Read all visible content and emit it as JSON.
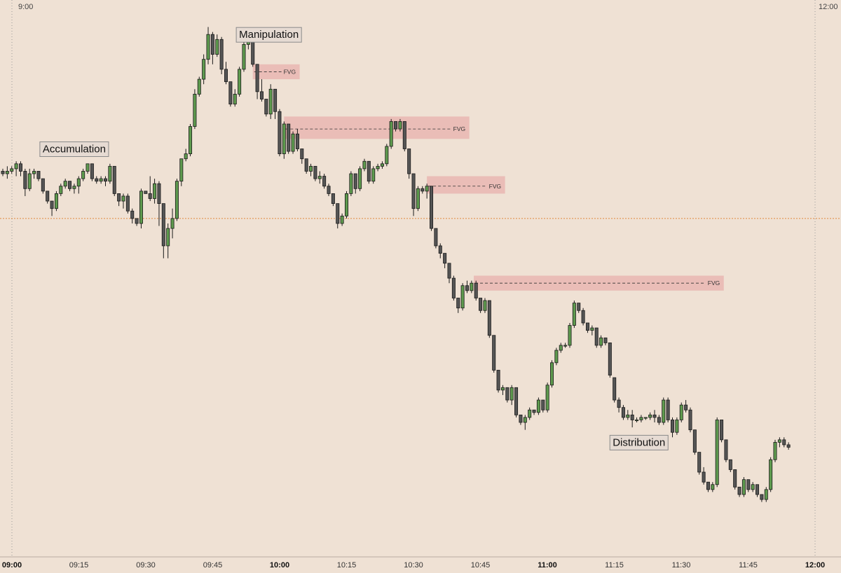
{
  "chart_data": {
    "type": "candlestick",
    "title": "",
    "top_left_label": "9:00",
    "top_right_label": "12:00",
    "x_ticks": [
      {
        "label": "09:00",
        "bold": true,
        "minute": 0
      },
      {
        "label": "09:15",
        "bold": false,
        "minute": 15
      },
      {
        "label": "09:30",
        "bold": false,
        "minute": 30
      },
      {
        "label": "09:45",
        "bold": false,
        "minute": 45
      },
      {
        "label": "10:00",
        "bold": true,
        "minute": 60
      },
      {
        "label": "10:15",
        "bold": false,
        "minute": 75
      },
      {
        "label": "10:30",
        "bold": false,
        "minute": 90
      },
      {
        "label": "10:45",
        "bold": false,
        "minute": 105
      },
      {
        "label": "11:00",
        "bold": true,
        "minute": 120
      },
      {
        "label": "11:15",
        "bold": false,
        "minute": 135
      },
      {
        "label": "11:30",
        "bold": false,
        "minute": 150
      },
      {
        "label": "11:45",
        "bold": false,
        "minute": 165
      },
      {
        "label": "12:00",
        "bold": true,
        "minute": 180
      }
    ],
    "x_range_minutes": [
      0,
      186
    ],
    "y_range": [
      0,
      100
    ],
    "reference_level": 61,
    "phase_labels": [
      {
        "text": "Accumulation",
        "minute": 16,
        "value": 75
      },
      {
        "text": "Manipulation",
        "minute": 59.6,
        "value": 98
      },
      {
        "text": "Distribution",
        "minute": 142.5,
        "value": 16
      }
    ],
    "fvg_zones": [
      {
        "label": "FVG",
        "start": 56,
        "end": 66.5,
        "low": 89,
        "high": 92,
        "line": 90.5
      },
      {
        "label": "FVG",
        "start": 63,
        "end": 104.5,
        "low": 77,
        "high": 81.5,
        "line": 79
      },
      {
        "label": "FVG",
        "start": 95,
        "end": 112.5,
        "low": 66,
        "high": 69.5,
        "line": 67.5
      },
      {
        "label": "FVG",
        "start": 105.5,
        "end": 161.5,
        "low": 46.5,
        "high": 49.5,
        "line": 48
      }
    ],
    "candles": [
      [
        70.5,
        71,
        69.5,
        70,
        70.5
      ],
      [
        70,
        71.5,
        69,
        70.5,
        71.5
      ],
      [
        70.5,
        71.5,
        70,
        71,
        72.5
      ],
      [
        71,
        72.5,
        69.5,
        72,
        72
      ],
      [
        72,
        72.5,
        69.5,
        70.5,
        71
      ],
      [
        70.5,
        71,
        65.5,
        67,
        62
      ],
      [
        67,
        71,
        66.5,
        70,
        71.5
      ],
      [
        70,
        71,
        69,
        70.5,
        71
      ],
      [
        70.5,
        70.5,
        68.5,
        69,
        71
      ],
      [
        69,
        69,
        66,
        66.5,
        67
      ],
      [
        66.5,
        66.5,
        64,
        64.5,
        65
      ],
      [
        64.5,
        64.5,
        61.5,
        63,
        65
      ],
      [
        63,
        66.5,
        62.5,
        66,
        66.5
      ],
      [
        66,
        68,
        65.5,
        67.5,
        68
      ],
      [
        67.5,
        69,
        67,
        68.5,
        69
      ],
      [
        68.5,
        68.5,
        66.5,
        67,
        70
      ],
      [
        67,
        68,
        66,
        67.5,
        68.5
      ],
      [
        67.5,
        69.5,
        66,
        69,
        70
      ],
      [
        69,
        71,
        68.5,
        70.5,
        71
      ],
      [
        70.5,
        72,
        70,
        72,
        72.5
      ],
      [
        72,
        72,
        68.5,
        69,
        72
      ],
      [
        69,
        69.5,
        68,
        68.5,
        69.5
      ],
      [
        68.5,
        69.5,
        68,
        69,
        69.5
      ],
      [
        69,
        69.5,
        67.5,
        68.5,
        69
      ],
      [
        68.5,
        72,
        68,
        71.5,
        72
      ],
      [
        71.5,
        71.5,
        65.5,
        66,
        71
      ],
      [
        66,
        66,
        63.5,
        64.5,
        65.5
      ],
      [
        64.5,
        66,
        63,
        65.5,
        66
      ],
      [
        65.5,
        66,
        62,
        62.5,
        64
      ],
      [
        62.5,
        63,
        60,
        61,
        62
      ],
      [
        61,
        61,
        59.5,
        60,
        61
      ],
      [
        60,
        67,
        59,
        66.5,
        72
      ],
      [
        66.5,
        66.5,
        66,
        66,
        67
      ],
      [
        66,
        69.5,
        64.5,
        65,
        69
      ],
      [
        65,
        69,
        64,
        68,
        68
      ],
      [
        68,
        68.5,
        59.5,
        64,
        59
      ],
      [
        64,
        64,
        53,
        55.5,
        59
      ],
      [
        55.5,
        60,
        53,
        59,
        61
      ],
      [
        59,
        63,
        57,
        61,
        63
      ],
      [
        61,
        69,
        60.5,
        68.5,
        69
      ],
      [
        68.5,
        73,
        67.5,
        73,
        73.5
      ],
      [
        73,
        75,
        72.5,
        74,
        74.5
      ],
      [
        74,
        80,
        73.5,
        79.5,
        80
      ],
      [
        79.5,
        87,
        79,
        86,
        87
      ],
      [
        86,
        89.5,
        85.5,
        89,
        89.5
      ],
      [
        89,
        94,
        88,
        93,
        94
      ],
      [
        93,
        99.5,
        92,
        98,
        99
      ],
      [
        98,
        98.5,
        92,
        94,
        94
      ],
      [
        94,
        98,
        93.5,
        97,
        97.5
      ],
      [
        97,
        97.5,
        90,
        91,
        91
      ],
      [
        91,
        92.5,
        88,
        88.5,
        88.5
      ],
      [
        88.5,
        88.5,
        83.5,
        84,
        86
      ],
      [
        84,
        87,
        83.5,
        86,
        86
      ],
      [
        86,
        91.5,
        85.5,
        91,
        91
      ],
      [
        91,
        97,
        90.5,
        96,
        96
      ],
      [
        96,
        98,
        95,
        97.5,
        98
      ],
      [
        97.5,
        97.5,
        91.5,
        92,
        92
      ],
      [
        92,
        92,
        85,
        86.5,
        86
      ],
      [
        86.5,
        89,
        84.5,
        85,
        88
      ],
      [
        85,
        85,
        81.5,
        82,
        84
      ],
      [
        82,
        88,
        81,
        87,
        89
      ],
      [
        87,
        87,
        81,
        82.5,
        80
      ],
      [
        82.5,
        83,
        73.5,
        74,
        74
      ],
      [
        74,
        80.5,
        73,
        80,
        79
      ],
      [
        80,
        80,
        74,
        74.5,
        77
      ],
      [
        74.5,
        78.5,
        74,
        78,
        79
      ],
      [
        78,
        79,
        74.5,
        75,
        80
      ],
      [
        75,
        75,
        72,
        73,
        72.5
      ],
      [
        73,
        73,
        70,
        70.5,
        69.5
      ],
      [
        70.5,
        72,
        69.5,
        71.5,
        72
      ],
      [
        71.5,
        71.5,
        68.5,
        69,
        73
      ],
      [
        69,
        70.5,
        68,
        69.5,
        71
      ],
      [
        69.5,
        70,
        67,
        67.5,
        70
      ],
      [
        67.5,
        68,
        65.5,
        66,
        67.5
      ],
      [
        66,
        66,
        63.5,
        64,
        67
      ],
      [
        64,
        64,
        59,
        60,
        62
      ],
      [
        60,
        62,
        59.5,
        61.5,
        63
      ],
      [
        61.5,
        66.5,
        61,
        66,
        67
      ],
      [
        66,
        70.5,
        65.5,
        70,
        69
      ],
      [
        70,
        70,
        66,
        67,
        67
      ],
      [
        67,
        71.5,
        66.5,
        71,
        73
      ],
      [
        71,
        73,
        70.5,
        72.5,
        72
      ],
      [
        72.5,
        72.5,
        68,
        68.5,
        69
      ],
      [
        68.5,
        71.5,
        68,
        71,
        70.5
      ],
      [
        71,
        72,
        70.5,
        71.5,
        73
      ],
      [
        71.5,
        72.5,
        71,
        72,
        74
      ],
      [
        72,
        76,
        71.5,
        75.5,
        77
      ],
      [
        75.5,
        81,
        75,
        80.5,
        81.5
      ],
      [
        80.5,
        80.5,
        78.5,
        79,
        82
      ],
      [
        79,
        81,
        78.5,
        80.5,
        81.5
      ],
      [
        80.5,
        80.5,
        74.5,
        75,
        75
      ],
      [
        75,
        75,
        69,
        70,
        70
      ],
      [
        70,
        70,
        61.5,
        63,
        61
      ],
      [
        63,
        67.5,
        62.5,
        67,
        67
      ],
      [
        67,
        67.5,
        66,
        66.5,
        68
      ],
      [
        66.5,
        68,
        65,
        67.5,
        69
      ],
      [
        67.5,
        67.5,
        58.5,
        59,
        58
      ],
      [
        59,
        59,
        55,
        55.5,
        55
      ],
      [
        55.5,
        56,
        53,
        54,
        54
      ],
      [
        54,
        54,
        51,
        52,
        52
      ],
      [
        52,
        52,
        48,
        49,
        49
      ],
      [
        49,
        49.5,
        44.5,
        45,
        45
      ],
      [
        45,
        45,
        42,
        43,
        43
      ],
      [
        43,
        48,
        42.5,
        47.5,
        48
      ],
      [
        47.5,
        48.5,
        46,
        46.5,
        48
      ],
      [
        46.5,
        48.5,
        46,
        48,
        49.5
      ],
      [
        48,
        48.5,
        44.5,
        45,
        49
      ],
      [
        45,
        45,
        42,
        42.5,
        43
      ],
      [
        42.5,
        45,
        42,
        44.5,
        45.5
      ],
      [
        44.5,
        44.5,
        37,
        37.5,
        38
      ],
      [
        37.5,
        37.5,
        30,
        30.5,
        32
      ],
      [
        30.5,
        30.5,
        26,
        26.5,
        27
      ],
      [
        26.5,
        27.5,
        25.5,
        27,
        28
      ],
      [
        27,
        27,
        24,
        24.5,
        27
      ],
      [
        24.5,
        27.5,
        23.5,
        27,
        28
      ],
      [
        27,
        27,
        21,
        21.5,
        22
      ],
      [
        21.5,
        21.5,
        19.5,
        20,
        20
      ],
      [
        20,
        21.5,
        18.5,
        21,
        22
      ],
      [
        21,
        23,
        20.5,
        22.5,
        22
      ],
      [
        22.5,
        22.5,
        21.5,
        22,
        24
      ],
      [
        22,
        25,
        21.5,
        24.5,
        25
      ],
      [
        24.5,
        24.5,
        22,
        22.5,
        26
      ],
      [
        22.5,
        28,
        22,
        27.5,
        28
      ],
      [
        27.5,
        32.5,
        27,
        32,
        31
      ],
      [
        32,
        35,
        31.5,
        34.5,
        35
      ],
      [
        34.5,
        36,
        34,
        35.5,
        36.5
      ],
      [
        35.5,
        36,
        35,
        35.5,
        36
      ],
      [
        35.5,
        40,
        35,
        39.5,
        41
      ],
      [
        39.5,
        44.5,
        39,
        44,
        44.5
      ],
      [
        44,
        44,
        42,
        42.5,
        44
      ],
      [
        42.5,
        43,
        39.5,
        40,
        41
      ],
      [
        40,
        40,
        38,
        38.5,
        38.5
      ],
      [
        38.5,
        39.5,
        37.5,
        39,
        39
      ],
      [
        39,
        39,
        35,
        35.5,
        35.5
      ],
      [
        35.5,
        37.5,
        35,
        37,
        36
      ],
      [
        37,
        37,
        35.5,
        36,
        38
      ],
      [
        36,
        36,
        29,
        29.5,
        29
      ],
      [
        29,
        29,
        24,
        24.5,
        24
      ],
      [
        24.5,
        25,
        22,
        23,
        22
      ],
      [
        23,
        23.5,
        20.5,
        21,
        21
      ],
      [
        21,
        22.5,
        20.5,
        21.5,
        21.5
      ],
      [
        21.5,
        22.5,
        19,
        20.5,
        20
      ],
      [
        20.5,
        21,
        20,
        20.5,
        21.5
      ],
      [
        20.5,
        21.5,
        20,
        21,
        22
      ],
      [
        21,
        21,
        20.5,
        21,
        22
      ],
      [
        21,
        22,
        20.5,
        21.5,
        22.5
      ],
      [
        21.5,
        22.5,
        20,
        21,
        21.5
      ],
      [
        21,
        21.5,
        19.5,
        20,
        20
      ],
      [
        20,
        25,
        19.5,
        24.5,
        25.5
      ],
      [
        24.5,
        25,
        20,
        20.5,
        20
      ],
      [
        20.5,
        21,
        17,
        18,
        17.5
      ],
      [
        18,
        21,
        17.5,
        20.5,
        22
      ],
      [
        20.5,
        24,
        20,
        23.5,
        24
      ],
      [
        23.5,
        24.5,
        22,
        22.5,
        23
      ],
      [
        22.5,
        23,
        18,
        18.5,
        18.5
      ],
      [
        18.5,
        18.5,
        13.5,
        14,
        14
      ],
      [
        14,
        14,
        9.5,
        10,
        10
      ],
      [
        10,
        11,
        7.5,
        8,
        8
      ],
      [
        8,
        8,
        6,
        6.5,
        7
      ],
      [
        6.5,
        8,
        6,
        7.5,
        8
      ],
      [
        7.5,
        21,
        7,
        20.5,
        19.5
      ],
      [
        20.5,
        20.5,
        16,
        16.5,
        16
      ],
      [
        16.5,
        16.5,
        12,
        12.5,
        12.5
      ],
      [
        12.5,
        12.5,
        10,
        10.5,
        10.5
      ],
      [
        10.5,
        10.5,
        6.5,
        7,
        7
      ],
      [
        7,
        7,
        5,
        5.5,
        5.5
      ],
      [
        5.5,
        9,
        5,
        8.5,
        8.5
      ],
      [
        8.5,
        8.5,
        6,
        6.5,
        7
      ],
      [
        6.5,
        8,
        6,
        7.5,
        8
      ],
      [
        7.5,
        7.5,
        5,
        5.5,
        5.5
      ],
      [
        5.5,
        5.5,
        4,
        4.5,
        4.5
      ],
      [
        4.5,
        7,
        4,
        6.5,
        6.5
      ],
      [
        6.5,
        13,
        6,
        12.5,
        12.5
      ],
      [
        12.5,
        16.5,
        12,
        16,
        15.5
      ],
      [
        16,
        17,
        15,
        16.5,
        17
      ],
      [
        16.5,
        17,
        15,
        15.5,
        16
      ],
      [
        15.5,
        16,
        14.5,
        15,
        15.5
      ]
    ]
  }
}
